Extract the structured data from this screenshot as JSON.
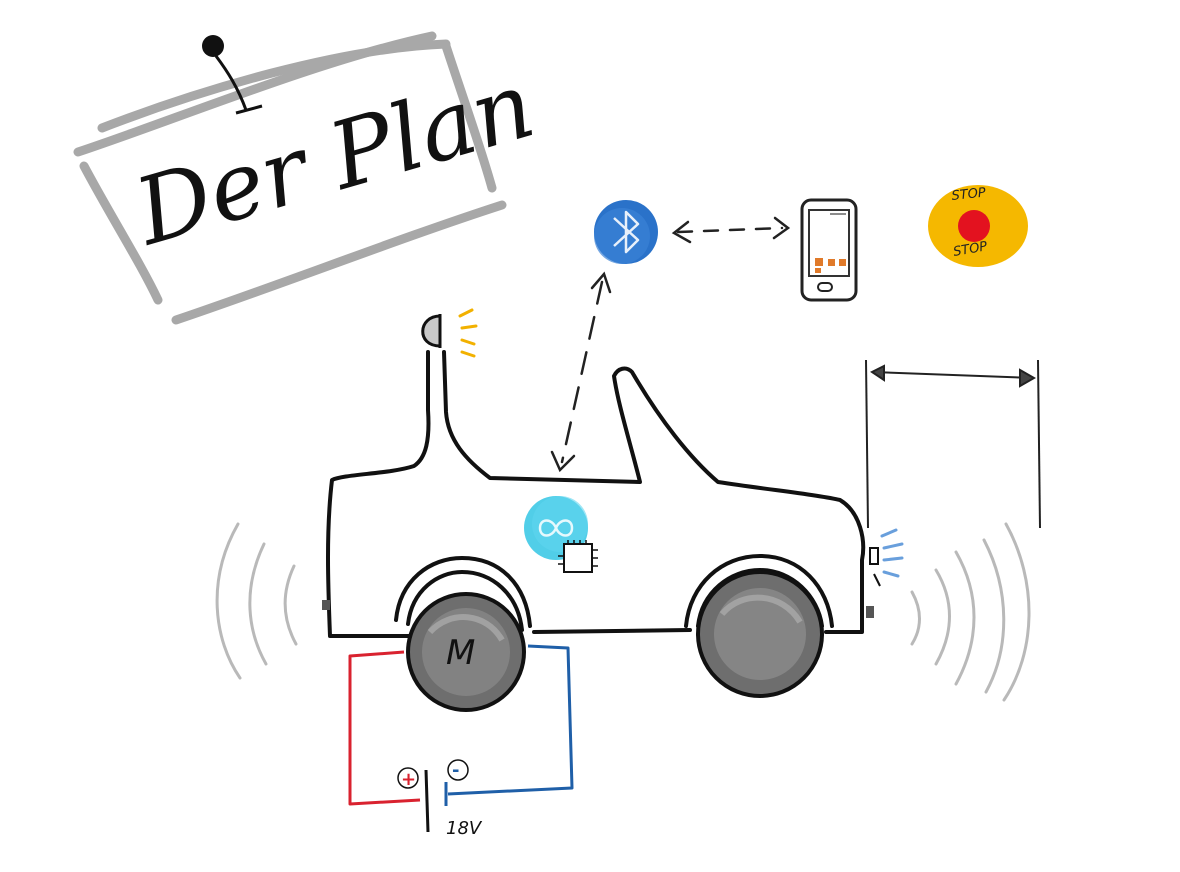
{
  "sign": {
    "title": "Der Plan"
  },
  "stop_button": {
    "top_label": "STOP",
    "bottom_label": "STOP"
  },
  "motor": {
    "label": "M"
  },
  "battery": {
    "plus": "+",
    "minus": "-",
    "voltage": "18V"
  },
  "colors": {
    "wire_positive": "#d9222f",
    "wire_negative": "#1f5fa8",
    "bluetooth": "#2a72c9",
    "arduino": "#3ec9e6",
    "beacon": "#f2b100",
    "stop_button": "#f5b800",
    "stop_dot": "#e3121f",
    "sign_frame": "#a8a8a8",
    "sound_waves": "#b9b9b9"
  },
  "icons": [
    "pin-icon",
    "bluetooth-icon",
    "smartphone-icon",
    "stop-button-icon",
    "beacon-light-icon",
    "arduino-icon",
    "ultrasonic-sensor-icon",
    "motor-icon",
    "battery-icon"
  ]
}
